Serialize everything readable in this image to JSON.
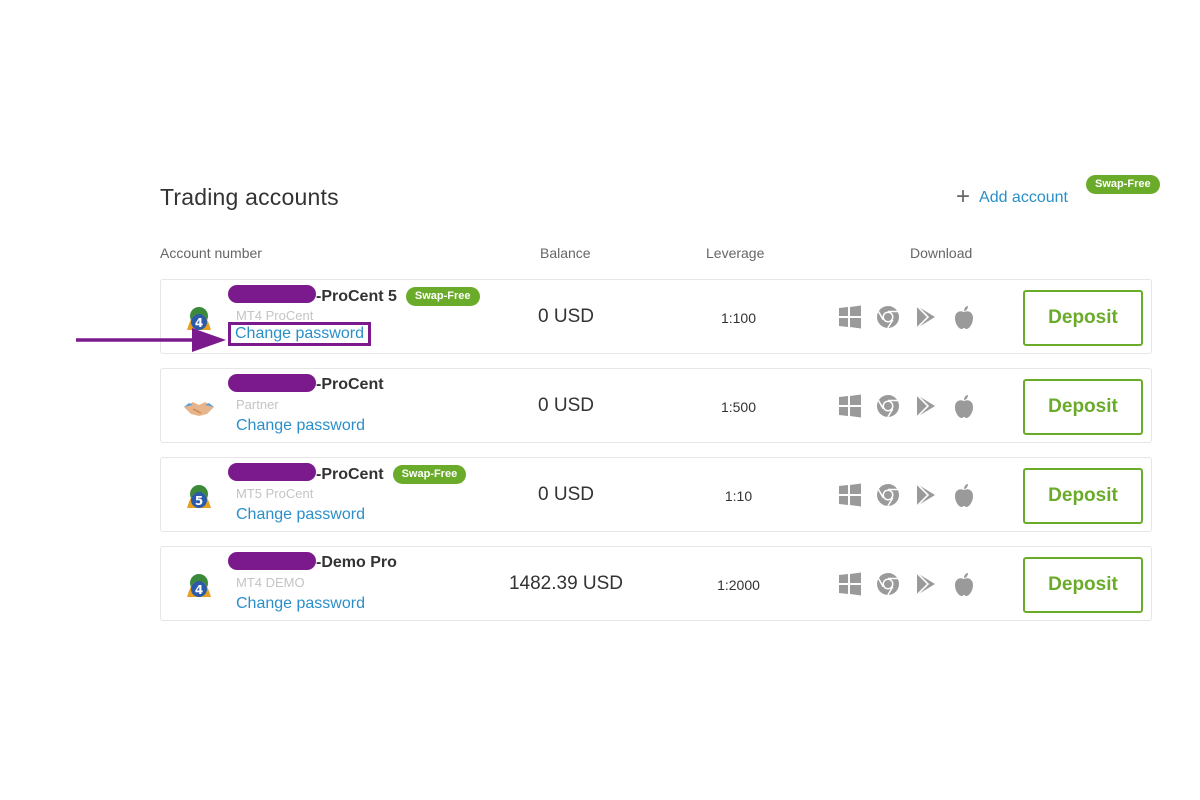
{
  "header": {
    "title": "Trading accounts",
    "add_account_label": "Add account",
    "badge": "Swap-Free"
  },
  "columns": {
    "account_number": "Account number",
    "balance": "Balance",
    "leverage": "Leverage",
    "download": "Download"
  },
  "accounts": [
    {
      "name": "-ProCent 5",
      "badge": "Swap-Free",
      "type": "MT4 ProCent",
      "change_password": "Change password",
      "balance": "0 USD",
      "leverage": "1:100",
      "deposit": "Deposit",
      "logo": "mt4-icon"
    },
    {
      "name": "-ProCent",
      "badge": "",
      "type": "Partner",
      "change_password": "Change password",
      "balance": "0 USD",
      "leverage": "1:500",
      "deposit": "Deposit",
      "logo": "handshake-icon"
    },
    {
      "name": "-ProCent",
      "badge": "Swap-Free",
      "type": "MT5 ProCent",
      "change_password": "Change password",
      "balance": "0 USD",
      "leverage": "1:10",
      "deposit": "Deposit",
      "logo": "mt5-icon"
    },
    {
      "name": "-Demo Pro",
      "badge": "",
      "type": "MT4 DEMO",
      "change_password": "Change password",
      "balance": "1482.39 USD",
      "leverage": "1:2000",
      "deposit": "Deposit",
      "logo": "mt4-icon"
    }
  ],
  "download_icons": [
    "windows-icon",
    "chrome-icon",
    "google-play-icon",
    "apple-icon"
  ],
  "colors": {
    "accent_blue": "#2a8fc9",
    "green": "#6aab2a",
    "redaction_purple": "#7b1a8c"
  }
}
